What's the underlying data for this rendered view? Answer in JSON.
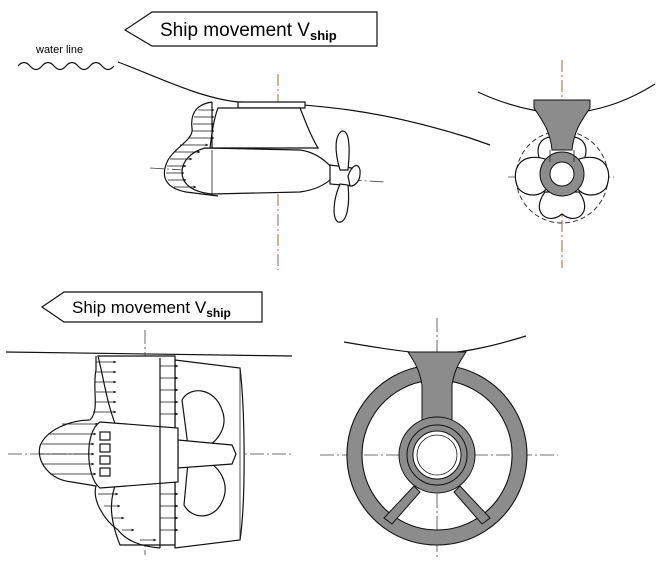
{
  "labels": {
    "ship_movement_top": "Ship movement V",
    "ship_movement_top_sub": "ship",
    "ship_movement_bottom": "Ship movement V",
    "ship_movement_bottom_sub": "ship",
    "water_line": "water line"
  },
  "colors": {
    "ink": "#111111",
    "hull_section_gray": "#8c8c8c",
    "vertical_axis": "#a0523d"
  },
  "icons": {
    "direction_arrow": "left-arrow-outline-icon",
    "water_wave": "wave-icon"
  }
}
